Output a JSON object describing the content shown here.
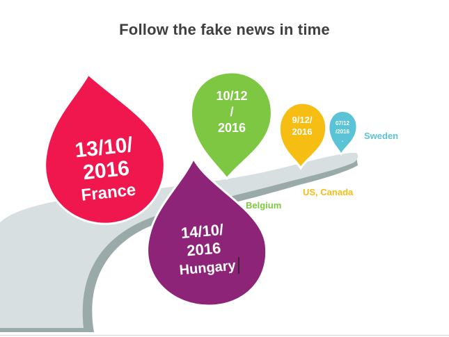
{
  "title": "Follow the fake news in time",
  "events": [
    {
      "id": "france",
      "lines": [
        "13/10/",
        "2016",
        "France"
      ],
      "color": "#f0174f"
    },
    {
      "id": "hungary",
      "lines": [
        "14/10/",
        "2016",
        "Hungary"
      ],
      "color": "#8e2477"
    },
    {
      "id": "belgium",
      "lines": [
        "10/12",
        "/",
        "2016"
      ],
      "label": "Belgium",
      "color": "#7dc742"
    },
    {
      "id": "us",
      "lines": [
        "9/12/",
        "2016"
      ],
      "label": "US, Canada",
      "color": "#f6bd13"
    },
    {
      "id": "sweden",
      "lines": [
        "07/12",
        "/2016",
        "."
      ],
      "label": "Sweden",
      "color": "#5bc3d6"
    }
  ],
  "colors": {
    "road": "#d7dfe0",
    "road_shadow": "#9aaaa9",
    "title": "#3f3f3f"
  }
}
